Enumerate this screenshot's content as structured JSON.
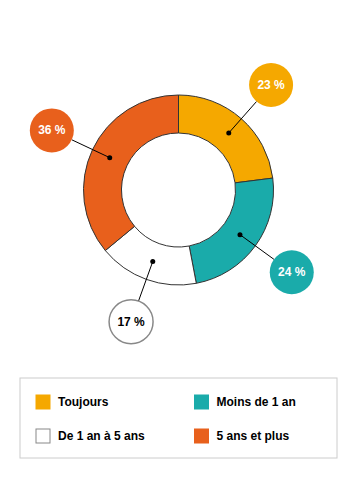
{
  "chart_data": {
    "type": "donut",
    "categories": [
      "Toujours",
      "Moins de 1 an",
      "De 1 an à 5 ans",
      "5 ans et plus"
    ],
    "values": [
      23,
      24,
      17,
      36
    ],
    "value_labels": [
      "23 %",
      "24 %",
      "17 %",
      "36 %"
    ],
    "colors": [
      "#F5A800",
      "#1AABAA",
      "#FFFFFF",
      "#E8601C"
    ],
    "data_labels": true,
    "legend": "bottom"
  }
}
